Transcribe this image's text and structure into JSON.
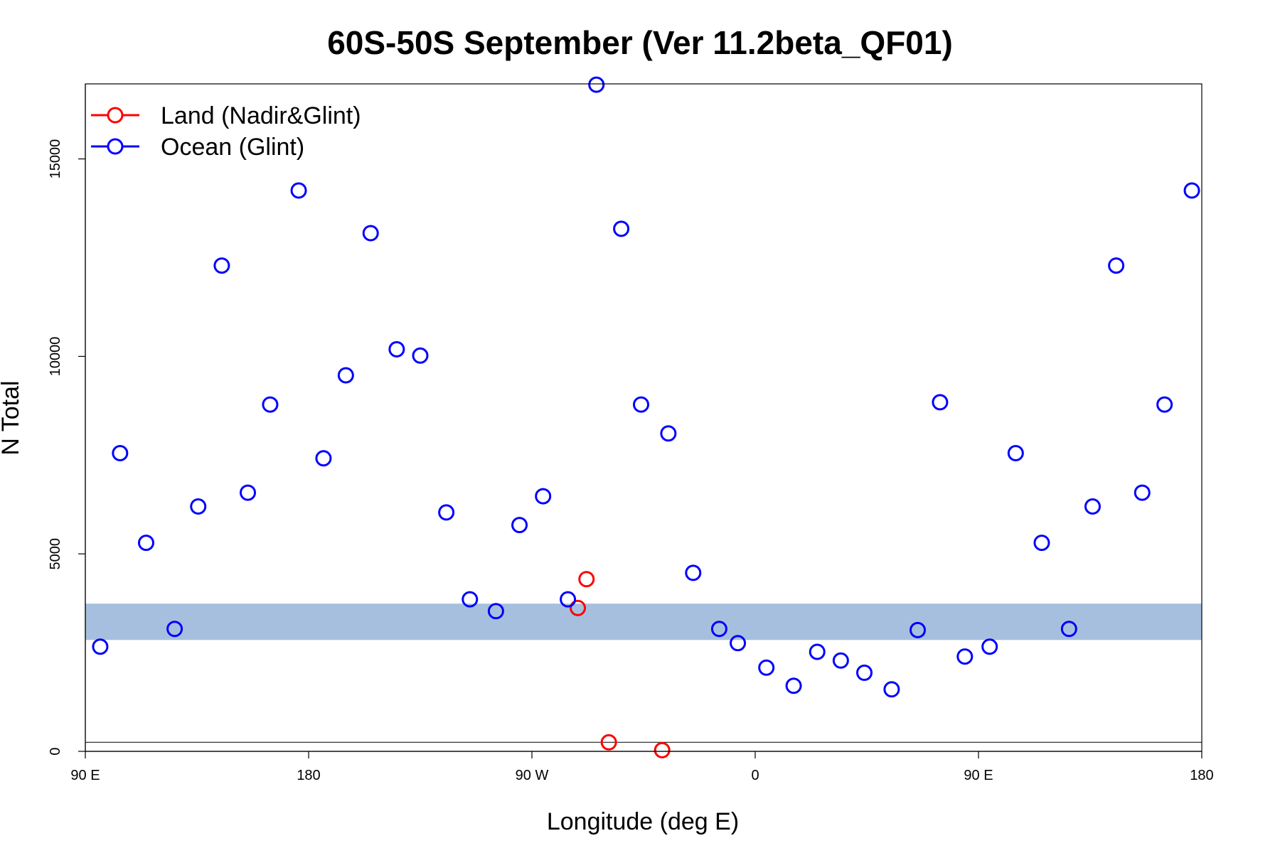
{
  "chart_data": {
    "type": "scatter",
    "title": "60S-50S September (Ver 11.2beta_QF01)",
    "xlabel": "Longitude (deg E)",
    "ylabel": "N Total",
    "x_axis_span_deg": [
      90,
      540
    ],
    "xlim": [
      90,
      540
    ],
    "ylim": [
      0,
      16900
    ],
    "x_ticks": [
      {
        "value": 90,
        "label": "90 E"
      },
      {
        "value": 180,
        "label": "180"
      },
      {
        "value": 270,
        "label": "90 W"
      },
      {
        "value": 360,
        "label": "0"
      },
      {
        "value": 450,
        "label": "90 E"
      },
      {
        "value": 540,
        "label": "180"
      }
    ],
    "y_ticks": [
      {
        "value": 0,
        "label": "0"
      },
      {
        "value": 5000,
        "label": "5000"
      },
      {
        "value": 10000,
        "label": "10000"
      },
      {
        "value": 15000,
        "label": "15000"
      }
    ],
    "legend_position": "top-left",
    "reference_line_y": 230,
    "background_band": {
      "y_from": 2820,
      "y_to": 3740,
      "color": "#a7bfdf"
    },
    "series": [
      {
        "name": "Land (Nadir&Glint)",
        "color": "#ff0000",
        "marker": "open-circle",
        "points": [
          [
            288.5,
            3630
          ],
          [
            292,
            4360
          ],
          [
            301,
            230
          ],
          [
            322.5,
            30
          ]
        ]
      },
      {
        "name": "Ocean (Glint)",
        "color": "#0000ff",
        "marker": "open-circle",
        "points": [
          [
            96,
            2650
          ],
          [
            104,
            7550
          ],
          [
            114.5,
            5280
          ],
          [
            126,
            3100
          ],
          [
            135.5,
            6200
          ],
          [
            145,
            12300
          ],
          [
            155.5,
            6550
          ],
          [
            164.5,
            8780
          ],
          [
            176,
            14200
          ],
          [
            186,
            7420
          ],
          [
            195,
            9520
          ],
          [
            205,
            13120
          ],
          [
            215.5,
            10180
          ],
          [
            225,
            10020
          ],
          [
            235.5,
            6050
          ],
          [
            245,
            3850
          ],
          [
            255.5,
            3550
          ],
          [
            265,
            5730
          ],
          [
            274.5,
            6460
          ],
          [
            284.5,
            3850
          ],
          [
            296,
            16880
          ],
          [
            306,
            13230
          ],
          [
            314,
            8780
          ],
          [
            325,
            8050
          ],
          [
            335,
            4520
          ],
          [
            345.5,
            3100
          ],
          [
            353,
            2740
          ],
          [
            364.5,
            2120
          ],
          [
            375.5,
            1660
          ],
          [
            385,
            2520
          ],
          [
            394.5,
            2300
          ],
          [
            404,
            1990
          ],
          [
            415,
            1570
          ],
          [
            425.5,
            3070
          ],
          [
            434.5,
            8840
          ],
          [
            444.5,
            2400
          ],
          [
            454.5,
            2650
          ],
          [
            465,
            7550
          ],
          [
            475.5,
            5280
          ],
          [
            486.5,
            3100
          ],
          [
            496,
            6200
          ],
          [
            505.5,
            12300
          ],
          [
            516,
            6550
          ],
          [
            525,
            8780
          ],
          [
            536,
            14200
          ]
        ]
      }
    ]
  }
}
